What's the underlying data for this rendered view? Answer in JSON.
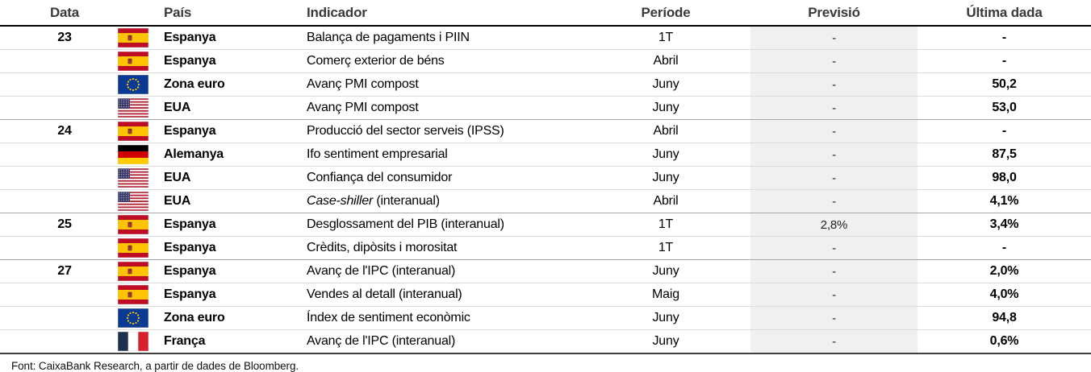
{
  "table": {
    "headers": {
      "date": "Data",
      "country": "País",
      "indicator": "Indicador",
      "period": "Període",
      "forecast": "Previsió",
      "last": "Última dada"
    },
    "rows": [
      {
        "date": "23",
        "flag": "es",
        "country": "Espanya",
        "indicator": "Balança de pagaments i PIIN",
        "period": "1T",
        "forecast": "-",
        "last": "-",
        "group_start": true
      },
      {
        "date": "",
        "flag": "es",
        "country": "Espanya",
        "indicator": "Comerç exterior de béns",
        "period": "Abril",
        "forecast": "-",
        "last": "-",
        "group_start": false
      },
      {
        "date": "",
        "flag": "eu",
        "country": "Zona euro",
        "indicator": "Avanç PMI compost",
        "period": "Juny",
        "forecast": "-",
        "last": "50,2",
        "group_start": false
      },
      {
        "date": "",
        "flag": "us",
        "country": "EUA",
        "indicator": "Avanç PMI compost",
        "period": "Juny",
        "forecast": "-",
        "last": "53,0",
        "group_start": false
      },
      {
        "date": "24",
        "flag": "es",
        "country": "Espanya",
        "indicator": "Producció del sector serveis (IPSS)",
        "period": "Abril",
        "forecast": "-",
        "last": "-",
        "group_start": true
      },
      {
        "date": "",
        "flag": "de",
        "country": "Alemanya",
        "indicator": "Ifo sentiment empresarial",
        "period": "Juny",
        "forecast": "-",
        "last": "87,5",
        "group_start": false
      },
      {
        "date": "",
        "flag": "us",
        "country": "EUA",
        "indicator": "Confiança del consumidor",
        "period": "Juny",
        "forecast": "-",
        "last": "98,0",
        "group_start": false
      },
      {
        "date": "",
        "flag": "us",
        "country": "EUA",
        "indicator_italic": "Case-shiller",
        "indicator": " (interanual)",
        "period": "Abril",
        "forecast": "-",
        "last": "4,1%",
        "group_start": false
      },
      {
        "date": "25",
        "flag": "es",
        "country": "Espanya",
        "indicator": "Desglossament del PIB (interanual)",
        "period": "1T",
        "forecast": "2,8%",
        "last": "3,4%",
        "group_start": true
      },
      {
        "date": "",
        "flag": "es",
        "country": "Espanya",
        "indicator": "Crèdits, dipòsits i morositat",
        "period": "1T",
        "forecast": "-",
        "last": "-",
        "group_start": false
      },
      {
        "date": "27",
        "flag": "es",
        "country": "Espanya",
        "indicator": "Avanç de l'IPC (interanual)",
        "period": "Juny",
        "forecast": "-",
        "last": "2,0%",
        "group_start": true
      },
      {
        "date": "",
        "flag": "es",
        "country": "Espanya",
        "indicator": "Vendes al detall (interanual)",
        "period": "Maig",
        "forecast": "-",
        "last": "4,0%",
        "group_start": false
      },
      {
        "date": "",
        "flag": "eu",
        "country": "Zona euro",
        "indicator": "Índex de sentiment econòmic",
        "period": "Juny",
        "forecast": "-",
        "last": "94,8",
        "group_start": false
      },
      {
        "date": "",
        "flag": "fr",
        "country": "França",
        "indicator": "Avanç de l'IPC (interanual)",
        "period": "Juny",
        "forecast": "-",
        "last": "0,6%",
        "group_start": false
      }
    ]
  },
  "footer": {
    "source": "Font: CaixaBank Research, a partir de dades de Bloomberg."
  },
  "flags": {
    "es": "spain-flag",
    "eu": "european-union-flag",
    "us": "usa-flag",
    "de": "germany-flag",
    "fr": "france-flag"
  },
  "colors": {
    "forecast_column_bg": "#f0f0f0",
    "row_divider": "#dcdcdc",
    "group_divider": "#a6a6a6",
    "header_rule": "#000000",
    "bottom_rule": "#3f3f3f",
    "header_text": "#3a3a3a"
  }
}
